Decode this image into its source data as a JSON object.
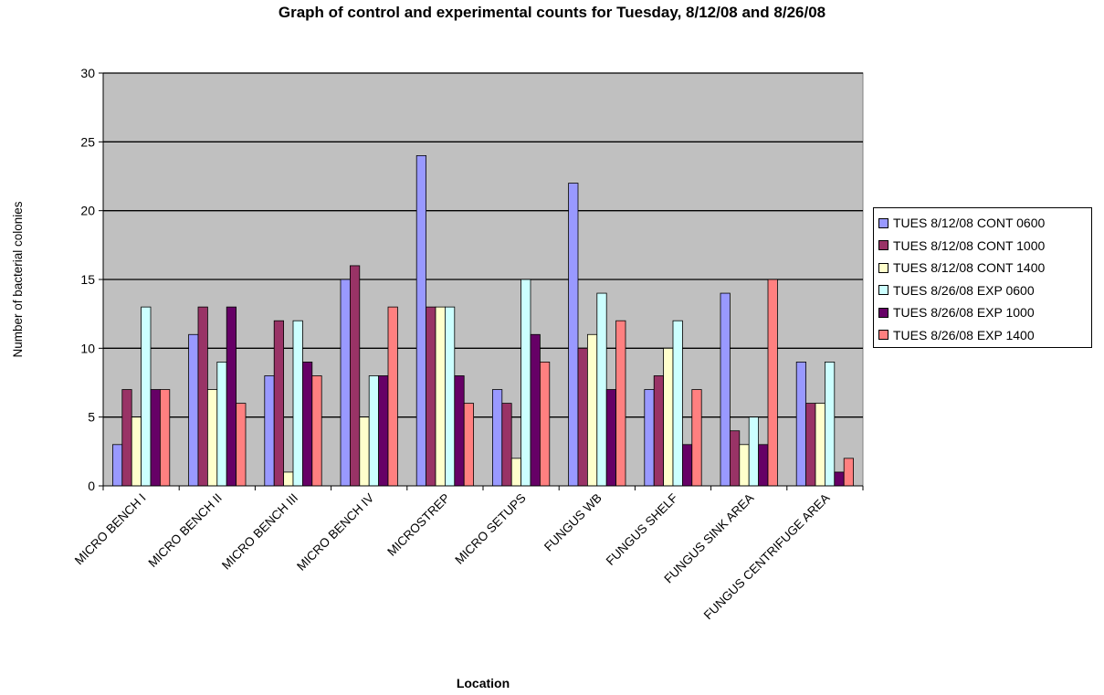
{
  "chart_data": {
    "type": "bar",
    "title": "Graph of control and experimental counts for Tuesday, 8/12/08 and 8/26/08",
    "xlabel": "Location",
    "ylabel": "Number of bacterial colonies",
    "ylim": [
      0,
      30
    ],
    "yticks": [
      0,
      5,
      10,
      15,
      20,
      25,
      30
    ],
    "grid": true,
    "legend_position": "right",
    "plot_background": "#c0c0c0",
    "categories": [
      "MICRO BENCH I",
      "MICRO BENCH II",
      "MICRO BENCH III",
      "MICRO BENCH IV",
      "MICROSTREP",
      "MICRO SETUPS",
      "FUNGUS WB",
      "FUNGUS SHELF",
      "FUNGUS SINK AREA",
      "FUNGUS CENTRIFUGE AREA"
    ],
    "series": [
      {
        "name": "TUES 8/12/08 CONT 0600",
        "color": "#9999ff",
        "values": [
          3,
          11,
          8,
          15,
          24,
          7,
          22,
          7,
          14,
          9
        ]
      },
      {
        "name": "TUES 8/12/08 CONT 1000",
        "color": "#993366",
        "values": [
          7,
          13,
          12,
          16,
          13,
          6,
          10,
          8,
          4,
          6
        ]
      },
      {
        "name": "TUES 8/12/08 CONT 1400",
        "color": "#ffffcc",
        "values": [
          5,
          7,
          1,
          5,
          13,
          2,
          11,
          10,
          3,
          6
        ]
      },
      {
        "name": "TUES 8/26/08 EXP 0600",
        "color": "#ccffff",
        "values": [
          13,
          9,
          12,
          8,
          13,
          15,
          14,
          12,
          5,
          9
        ]
      },
      {
        "name": "TUES 8/26/08 EXP 1000",
        "color": "#660066",
        "values": [
          7,
          13,
          9,
          8,
          8,
          11,
          7,
          3,
          3,
          1
        ]
      },
      {
        "name": "TUES 8/26/08 EXP 1400",
        "color": "#ff8080",
        "values": [
          7,
          6,
          8,
          13,
          6,
          9,
          12,
          7,
          15,
          2
        ]
      }
    ]
  }
}
